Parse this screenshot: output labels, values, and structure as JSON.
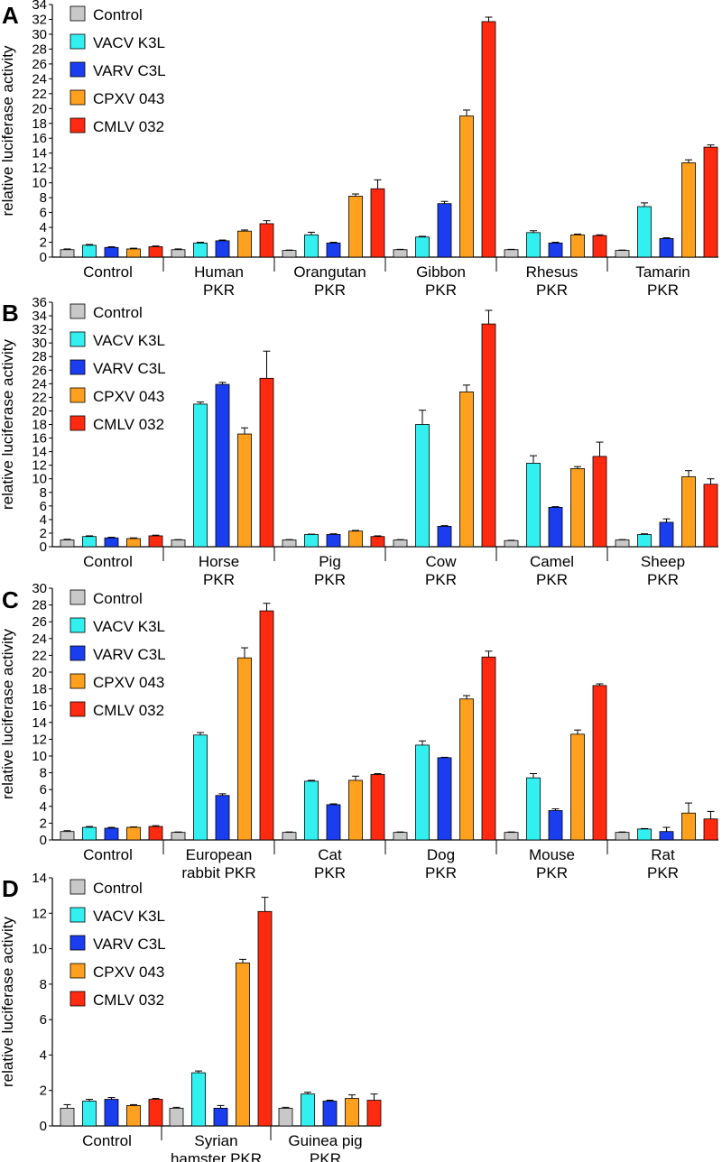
{
  "colors": {
    "Control": "#c8c8c8",
    "VACV K3L": "#33f0f0",
    "VARV C3L": "#1a3df0",
    "CPXV 043": "#ffa01e",
    "CMLV 032": "#ff2a10"
  },
  "chart_data": [
    {
      "panel": "A",
      "type": "bar",
      "ylabel": "relative luciferase activity",
      "ylim": [
        0,
        34
      ],
      "yticks": [
        "0",
        "2",
        "4",
        "6",
        "8",
        "10",
        "12",
        "14",
        "16",
        "18",
        "20",
        "22",
        "24",
        "26",
        "28",
        "30",
        "32",
        "34"
      ],
      "legend": [
        "Control",
        "VACV K3L",
        "VARV C3L",
        "CPXV 043",
        "CMLV 032"
      ],
      "groups": [
        {
          "label": [
            "Control"
          ],
          "values": [
            1.0,
            1.6,
            1.3,
            1.1,
            1.4
          ],
          "errors": [
            0.1,
            0.1,
            0.1,
            0.1,
            0.1
          ]
        },
        {
          "label": [
            "Human",
            "PKR"
          ],
          "values": [
            1.0,
            1.9,
            2.2,
            3.5,
            4.5
          ],
          "errors": [
            0.1,
            0.1,
            0.1,
            0.15,
            0.4
          ]
        },
        {
          "label": [
            "Orangutan",
            "PKR"
          ],
          "values": [
            0.9,
            3.0,
            1.9,
            8.2,
            9.2
          ],
          "errors": [
            0.05,
            0.35,
            0.1,
            0.3,
            1.2
          ]
        },
        {
          "label": [
            "Gibbon",
            "PKR"
          ],
          "values": [
            1.0,
            2.7,
            7.2,
            19.0,
            31.7
          ],
          "errors": [
            0.05,
            0.1,
            0.3,
            0.8,
            0.6
          ]
        },
        {
          "label": [
            "Rhesus",
            "PKR"
          ],
          "values": [
            1.0,
            3.3,
            1.9,
            3.0,
            2.9
          ],
          "errors": [
            0.05,
            0.25,
            0.1,
            0.1,
            0.1
          ]
        },
        {
          "label": [
            "Tamarin",
            "PKR"
          ],
          "values": [
            0.9,
            6.8,
            2.5,
            12.7,
            14.8
          ],
          "errors": [
            0.05,
            0.5,
            0.1,
            0.4,
            0.3
          ]
        }
      ]
    },
    {
      "panel": "B",
      "type": "bar",
      "ylabel": "relative luciferase activity",
      "ylim": [
        0,
        36
      ],
      "yticks": [
        "0",
        "2",
        "4",
        "6",
        "8",
        "10",
        "12",
        "14",
        "16",
        "18",
        "20",
        "22",
        "24",
        "26",
        "28",
        "30",
        "32",
        "34",
        "36"
      ],
      "legend": [
        "Control",
        "VACV K3L",
        "VARV C3L",
        "CPXV 043",
        "CMLV 032"
      ],
      "groups": [
        {
          "label": [
            "Control"
          ],
          "values": [
            1.0,
            1.5,
            1.3,
            1.2,
            1.6
          ],
          "errors": [
            0.1,
            0.1,
            0.1,
            0.1,
            0.1
          ]
        },
        {
          "label": [
            "Horse",
            "PKR"
          ],
          "values": [
            1.0,
            21.0,
            23.9,
            16.6,
            24.8
          ],
          "errors": [
            0.05,
            0.3,
            0.3,
            0.9,
            4.0
          ]
        },
        {
          "label": [
            "Pig",
            "PKR"
          ],
          "values": [
            1.0,
            1.8,
            1.8,
            2.3,
            1.5
          ],
          "errors": [
            0.05,
            0.05,
            0.1,
            0.1,
            0.1
          ]
        },
        {
          "label": [
            "Cow",
            "PKR"
          ],
          "values": [
            1.0,
            18.0,
            3.0,
            22.8,
            32.8
          ],
          "errors": [
            0.05,
            2.1,
            0.1,
            1.0,
            2.0
          ]
        },
        {
          "label": [
            "Camel",
            "PKR"
          ],
          "values": [
            0.9,
            12.3,
            5.8,
            11.5,
            13.3
          ],
          "errors": [
            0.05,
            1.1,
            0.1,
            0.3,
            2.1
          ]
        },
        {
          "label": [
            "Sheep",
            "PKR"
          ],
          "values": [
            1.0,
            1.8,
            3.6,
            10.3,
            9.2
          ],
          "errors": [
            0.05,
            0.1,
            0.5,
            0.9,
            0.8
          ]
        }
      ]
    },
    {
      "panel": "C",
      "type": "bar",
      "ylabel": "relative luciferase activity",
      "ylim": [
        0,
        30
      ],
      "yticks": [
        "0",
        "2",
        "4",
        "6",
        "8",
        "10",
        "12",
        "14",
        "16",
        "18",
        "20",
        "22",
        "24",
        "26",
        "28",
        "30"
      ],
      "legend": [
        "Control",
        "VACV K3L",
        "VARV C3L",
        "CPXV 043",
        "CMLV 032"
      ],
      "groups": [
        {
          "label": [
            "Control"
          ],
          "values": [
            1.0,
            1.5,
            1.4,
            1.5,
            1.6
          ],
          "errors": [
            0.1,
            0.1,
            0.1,
            0.05,
            0.1
          ]
        },
        {
          "label": [
            "European",
            "rabbit PKR"
          ],
          "values": [
            0.9,
            12.5,
            5.3,
            21.7,
            27.3
          ],
          "errors": [
            0.05,
            0.3,
            0.2,
            1.2,
            0.9
          ]
        },
        {
          "label": [
            "Cat",
            "PKR"
          ],
          "values": [
            0.9,
            7.0,
            4.2,
            7.1,
            7.8
          ],
          "errors": [
            0.05,
            0.1,
            0.1,
            0.5,
            0.1
          ]
        },
        {
          "label": [
            "Dog",
            "PKR"
          ],
          "values": [
            0.9,
            11.3,
            9.8,
            16.8,
            21.8
          ],
          "errors": [
            0.05,
            0.5,
            0.05,
            0.4,
            0.7
          ]
        },
        {
          "label": [
            "Mouse",
            "PKR"
          ],
          "values": [
            0.9,
            7.4,
            3.5,
            12.6,
            18.4
          ],
          "errors": [
            0.05,
            0.5,
            0.2,
            0.5,
            0.2
          ]
        },
        {
          "label": [
            "Rat",
            "PKR"
          ],
          "values": [
            0.9,
            1.3,
            1.0,
            3.2,
            2.5
          ],
          "errors": [
            0.05,
            0.05,
            0.5,
            1.2,
            0.9
          ]
        }
      ]
    },
    {
      "panel": "D",
      "type": "bar",
      "ylabel": "relative luciferase activity",
      "ylim": [
        0,
        14
      ],
      "yticks": [
        "0",
        "2",
        "4",
        "6",
        "8",
        "10",
        "12",
        "14"
      ],
      "legend": [
        "Control",
        "VACV K3L",
        "VARV C3L",
        "CPXV 043",
        "CMLV 032"
      ],
      "groups": [
        {
          "label": [
            "Control"
          ],
          "values": [
            1.0,
            1.4,
            1.5,
            1.15,
            1.5
          ],
          "errors": [
            0.2,
            0.1,
            0.1,
            0.05,
            0.05
          ]
        },
        {
          "label": [
            "Syrian",
            "hamster PKR"
          ],
          "values": [
            1.0,
            3.0,
            1.0,
            9.2,
            12.1
          ],
          "errors": [
            0.05,
            0.1,
            0.15,
            0.2,
            0.8
          ]
        },
        {
          "label": [
            "Guinea pig",
            "PKR"
          ],
          "values": [
            1.0,
            1.8,
            1.4,
            1.55,
            1.45
          ],
          "errors": [
            0.05,
            0.1,
            0.05,
            0.2,
            0.35
          ]
        }
      ]
    }
  ]
}
